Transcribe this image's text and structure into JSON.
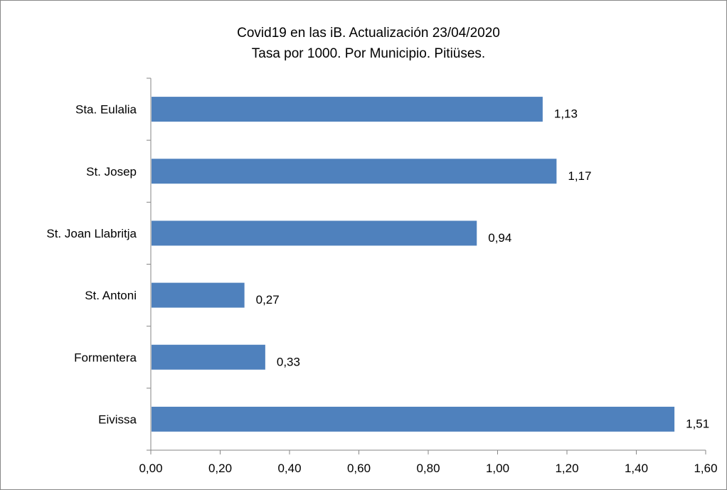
{
  "chart_data": {
    "type": "bar",
    "orientation": "horizontal",
    "title": "Covid19 en las iB. Actualización 23/04/2020",
    "subtitle": "Tasa por 1000. Por Municipio.  Pitiüses.",
    "categories": [
      "Sta. Eulalia",
      "St. Josep",
      "St. Joan Llabritja",
      "St. Antoni",
      "Formentera",
      "Eivissa"
    ],
    "values": [
      1.13,
      1.17,
      0.94,
      0.27,
      0.33,
      1.51
    ],
    "value_labels": [
      "1,13",
      "1,17",
      "0,94",
      "0,27",
      "0,33",
      "1,51"
    ],
    "xlim": [
      0,
      1.6
    ],
    "x_ticks": [
      0,
      0.2,
      0.4,
      0.6,
      0.8,
      1.0,
      1.2,
      1.4,
      1.6
    ],
    "x_tick_labels": [
      "0,00",
      "0,20",
      "0,40",
      "0,60",
      "0,80",
      "1,00",
      "1,20",
      "1,40",
      "1,60"
    ],
    "grid": false,
    "legend": "none",
    "bar_color": "#4f81bd"
  }
}
